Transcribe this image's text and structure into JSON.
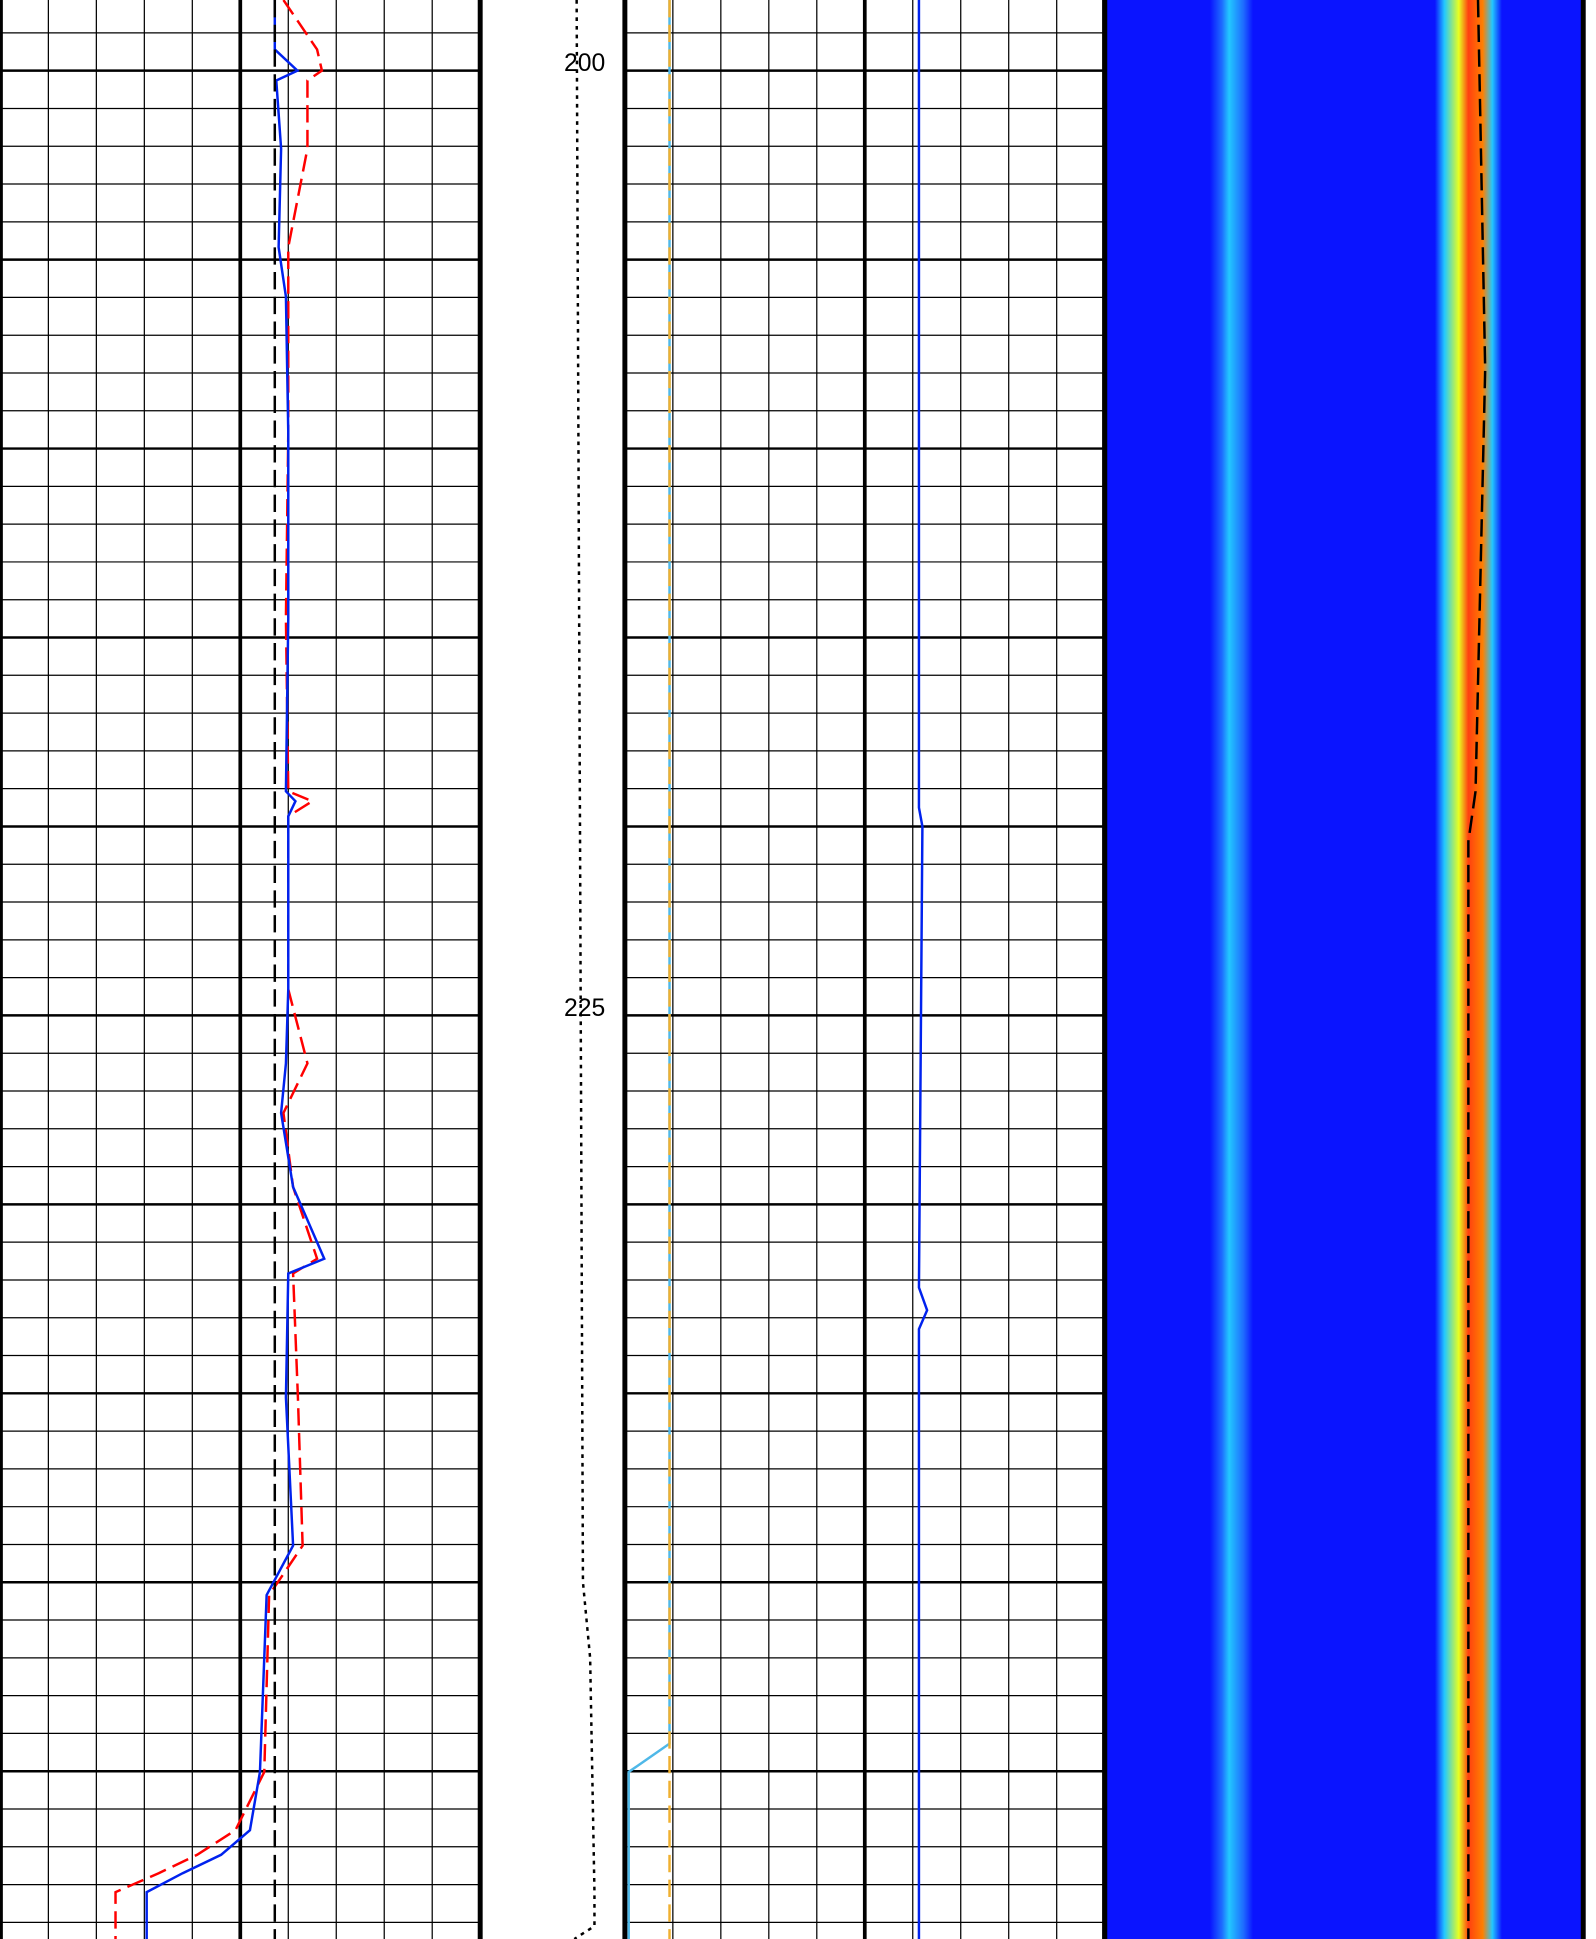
{
  "chart_data": {
    "type": "well-log",
    "ylim": [
      198.13,
      249.44
    ],
    "yticks": [
      200,
      225
    ],
    "grid_major": [
      200,
      205,
      210,
      215,
      220,
      225,
      230,
      235,
      240,
      245
    ],
    "grid_minor": [
      199,
      200,
      201,
      202,
      203,
      204,
      205,
      206,
      207,
      208,
      209,
      210,
      211,
      212,
      213,
      214,
      215,
      216,
      217,
      218,
      219,
      220,
      221,
      222,
      223,
      224,
      225,
      226,
      227,
      228,
      229,
      230,
      231,
      232,
      233,
      234,
      235,
      236,
      237,
      238,
      239,
      240,
      241,
      242,
      243,
      244,
      245,
      246,
      247,
      248,
      249
    ],
    "tracks": [
      {
        "kind": "grid",
        "xlim": [
          0,
          10
        ],
        "xticks": [
          0,
          1,
          2,
          3,
          4,
          5,
          6,
          7,
          8,
          9,
          10
        ],
        "xticks_major": [
          0,
          5,
          10
        ],
        "series": [
          {
            "color": "#ff0000",
            "dash": true,
            "depth": [
              198.13,
              199.44,
              200.0,
              200.26,
              202.06,
              204.67,
              205.98,
              209.58,
              214.49,
              219.07,
              219.33,
              219.73,
              224.31,
              226.27,
              227.58,
              229.54,
              231.44,
              231.83,
              235.11,
              239.03,
              240.34,
              245.02,
              246.56,
              247.21,
              247.7,
              248.2,
              249.44
            ],
            "values": [
              5.9,
              6.6,
              6.7,
              6.4,
              6.4,
              6.0,
              6.0,
              6.0,
              5.95,
              6.0,
              6.5,
              6.0,
              6.0,
              6.4,
              5.9,
              6.1,
              6.6,
              6.1,
              6.2,
              6.3,
              5.6,
              5.5,
              4.9,
              4.1,
              3.3,
              2.4,
              2.4
            ]
          },
          {
            "color": "#0022ee",
            "dash": false,
            "depth": [
              198.13,
              199.44,
              200.0,
              200.26,
              202.06,
              204.67,
              205.98,
              209.58,
              214.49,
              219.07,
              219.33,
              219.73,
              224.31,
              226.27,
              227.58,
              229.54,
              231.44,
              231.83,
              235.11,
              239.03,
              240.34,
              245.02,
              246.56,
              247.21,
              247.7,
              248.2,
              249.44
            ],
            "values": [
              5.72,
              5.72,
              6.19,
              5.75,
              5.85,
              5.8,
              5.95,
              6.0,
              6.0,
              5.95,
              6.15,
              6.0,
              6.0,
              5.95,
              5.85,
              6.1,
              6.75,
              6.0,
              5.95,
              6.1,
              5.55,
              5.41,
              5.2,
              4.6,
              3.8,
              3.05,
              3.05
            ]
          },
          {
            "color": "#000000",
            "dash": true,
            "depth": [
              198.13,
              249.44
            ],
            "values": [
              5.72,
              5.72
            ]
          }
        ]
      },
      {
        "kind": "depth",
        "xlim": [
          0,
          10
        ],
        "series": [
          {
            "color": "#000000",
            "dotted": true,
            "depth": [
              198.13,
              220.0,
              240.0,
              242.0,
              248.2,
              249.1,
              249.44
            ],
            "values": [
              6.67,
              6.9,
              7.1,
              7.6,
              7.9,
              7.9,
              6.5
            ]
          }
        ]
      },
      {
        "kind": "grid",
        "xlim": [
          0,
          10
        ],
        "xticks": [
          0,
          1,
          2,
          3,
          4,
          5,
          6,
          7,
          8,
          9,
          10
        ],
        "xticks_major": [
          0,
          5,
          10
        ],
        "series": [
          {
            "color": "#4fb8e8",
            "dash": false,
            "depth": [
              198.13,
              244.27,
              245.02,
              249.44
            ],
            "values": [
              0.93,
              0.93,
              0.08,
              0.08
            ]
          },
          {
            "color": "#f0b030",
            "dash": true,
            "depth": [
              198.13,
              249.44
            ],
            "values": [
              0.93,
              0.93
            ]
          },
          {
            "color": "#0022ee",
            "dash": false,
            "depth": [
              198.13,
              219.5,
              220.0,
              232.2,
              232.8,
              233.3,
              249.44
            ],
            "values": [
              6.13,
              6.13,
              6.2,
              6.13,
              6.3,
              6.13,
              6.13
            ]
          }
        ]
      },
      {
        "kind": "image",
        "xlim": [
          0,
          10
        ],
        "series": [
          {
            "color": "#000000",
            "dash": true,
            "depth": [
              198.13,
              207.9,
              219.07,
              220.4,
              249.44
            ],
            "values": [
              7.8,
              7.95,
              7.75,
              7.6,
              7.6
            ]
          }
        ]
      }
    ]
  }
}
